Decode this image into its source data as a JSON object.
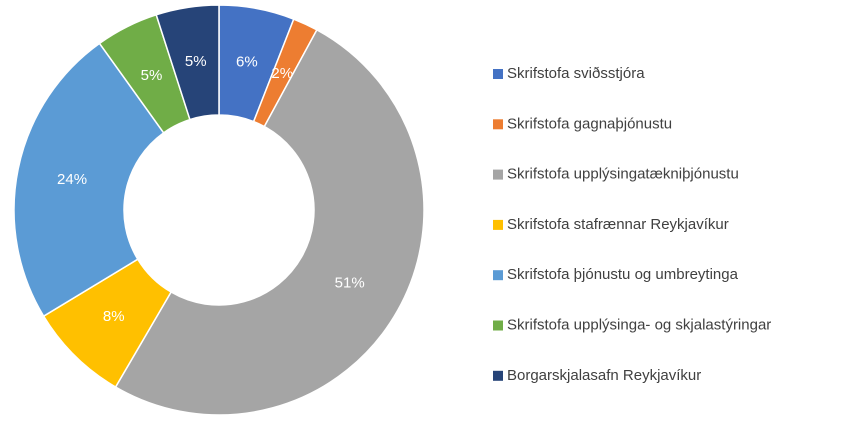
{
  "chart_data": {
    "type": "donut",
    "categories": [
      "Skrifstofa sviðsstjóra",
      "Skrifstofa gagnaþjónustu",
      "Skrifstofa upplýsingatækniþjónustu",
      "Skrifstofa stafrænnar Reykjavíkur",
      "Skrifstofa þjónustu og umbreytinga",
      "Skrifstofa upplýsinga- og skjalastýringar",
      "Borgarskjalasafn Reykjavíkur"
    ],
    "values": [
      6,
      2,
      51,
      8,
      24,
      5,
      5
    ],
    "value_labels": [
      "6%",
      "2%",
      "51%",
      "8%",
      "24%",
      "5%",
      "5%"
    ],
    "colors": [
      "#4472c4",
      "#ed7d31",
      "#a5a5a5",
      "#ffc000",
      "#5b9bd5",
      "#70ad47",
      "#264478"
    ],
    "legend": "right"
  }
}
